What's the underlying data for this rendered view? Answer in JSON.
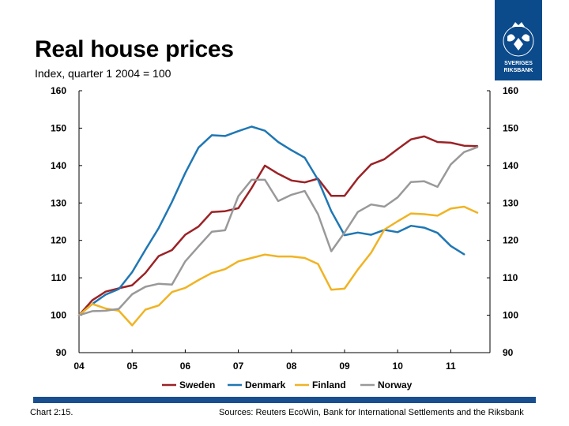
{
  "header": {
    "title": "Real house prices",
    "subtitle": "Index, quarter 1 2004 = 100"
  },
  "logo": {
    "line1": "SVERIGES",
    "line2": "RIKSBANK",
    "color": "#0b4a8b"
  },
  "footer": {
    "chart_number": "Chart 2:15.",
    "sources": "Sources: Reuters EcoWin, Bank for International Settlements and the Riksbank",
    "bar_color": "#1a4f8f"
  },
  "chart_data": {
    "type": "line",
    "title": "Real house prices",
    "subtitle": "Index, quarter 1 2004 = 100",
    "ylim": [
      90,
      160
    ],
    "yticks": [
      90,
      100,
      110,
      120,
      130,
      140,
      150,
      160
    ],
    "xticks": [
      "04",
      "05",
      "06",
      "07",
      "08",
      "09",
      "10",
      "11"
    ],
    "grid": false,
    "legend": "bottom",
    "series": [
      {
        "name": "Sweden",
        "color": "#9b2226",
        "values": [
          100,
          104,
          106.3,
          107.2,
          108,
          111.3,
          115.8,
          117.4,
          121.5,
          123.7,
          127.6,
          127.8,
          128.6,
          134,
          140,
          137.8,
          136,
          135.5,
          136.5,
          131.9,
          131.9,
          136.6,
          140.3,
          141.7,
          144.4,
          147,
          147.8,
          146.3,
          146.1,
          145.3,
          145.2
        ]
      },
      {
        "name": "Denmark",
        "color": "#1f77b4",
        "values": [
          100,
          103,
          105.5,
          107,
          111.5,
          117.5,
          123.3,
          130.3,
          138,
          144.8,
          148.1,
          147.9,
          149.2,
          150.4,
          149.3,
          146.3,
          144.1,
          142.1,
          136.2,
          127.8,
          121.4,
          122.1,
          121.5,
          122.8,
          122.2,
          123.9,
          123.4,
          122,
          118.5,
          116.3
        ]
      },
      {
        "name": "Finland",
        "color": "#f0b323",
        "values": [
          100,
          103,
          101.8,
          101.2,
          97.3,
          101.5,
          102.6,
          106.2,
          107.3,
          109.4,
          111.3,
          112.3,
          114.4,
          115.3,
          116.2,
          115.7,
          115.7,
          115.3,
          113.7,
          106.8,
          107.1,
          112.2,
          116.7,
          122.9,
          125.1,
          127.2,
          127,
          126.6,
          128.5,
          129,
          127.4
        ]
      },
      {
        "name": "Norway",
        "color": "#999999",
        "values": [
          100,
          101.1,
          101.2,
          101.7,
          105.6,
          107.6,
          108.4,
          108.2,
          114.4,
          118.4,
          122.3,
          122.7,
          131.8,
          136.2,
          136.2,
          130.5,
          132.2,
          133.2,
          127,
          117.1,
          122.1,
          127.6,
          129.6,
          129,
          131.5,
          135.6,
          135.8,
          134.3,
          140.3,
          143.6,
          144.9
        ]
      }
    ]
  }
}
